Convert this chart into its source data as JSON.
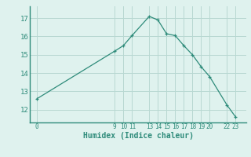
{
  "x": [
    0,
    9,
    10,
    11,
    13,
    14,
    15,
    16,
    17,
    18,
    19,
    20,
    22,
    23
  ],
  "y": [
    12.6,
    15.2,
    15.5,
    16.05,
    17.1,
    16.9,
    16.15,
    16.05,
    15.5,
    15.0,
    14.35,
    13.8,
    12.25,
    11.6
  ],
  "xticks": [
    0,
    9,
    10,
    11,
    13,
    14,
    15,
    16,
    17,
    18,
    19,
    20,
    22,
    23
  ],
  "yticks": [
    12,
    13,
    14,
    15,
    16,
    17
  ],
  "ylim": [
    11.3,
    17.65
  ],
  "xlim": [
    -0.8,
    24.2
  ],
  "xlabel": "Humidex (Indice chaleur)",
  "line_color": "#2e8b7a",
  "bg_color": "#dff2ee",
  "grid_color": "#b8d8d2"
}
